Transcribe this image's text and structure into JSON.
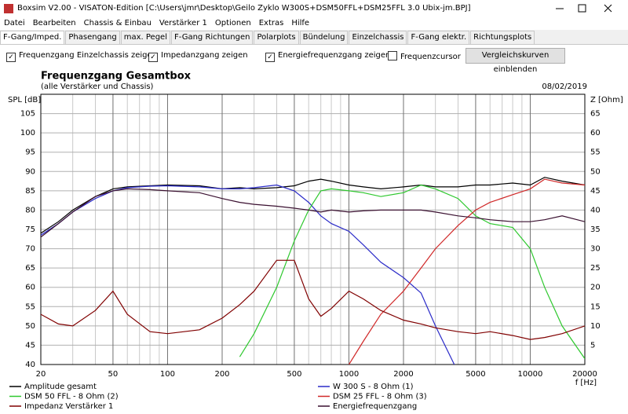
{
  "window": {
    "title": "Boxsim V2.00 - VISATON-Edition [C:\\Users\\jmr\\Desktop\\Geilo Zyklo W300S+DSM50FFL+DSM25FFL 3.0 Ubix-jm.BPJ]"
  },
  "menu": [
    "Datei",
    "Bearbeiten",
    "Chassis & Einbau",
    "Verstärker 1",
    "Optionen",
    "Extras",
    "Hilfe"
  ],
  "tabs": [
    "F-Gang/Imped.",
    "Phasengang",
    "max. Pegel",
    "F-Gang Richtungen",
    "Polarplots",
    "Bündelung",
    "Einzelchassis",
    "F-Gang elektr.",
    "Richtungsplots"
  ],
  "options": {
    "checkboxes": [
      {
        "label": "Frequenzgang Einzelchassis zeigen",
        "checked": true
      },
      {
        "label": "Impedanzgang zeigen",
        "checked": true
      },
      {
        "label": "Energiefrequenzgang zeigen",
        "checked": true
      },
      {
        "label": "Frequenzcursor",
        "checked": false
      }
    ],
    "button": "Vergleichskurven einblenden"
  },
  "chart_data": {
    "type": "line",
    "title": "Frequenzgang Gesamtbox",
    "subtitle": "(alle Verstärker und Chassis)",
    "date": "08/02/2019",
    "ylabel": "SPL [dB]",
    "y2label": "Z [Ohm]",
    "xlabel": "f [Hz]",
    "xscale": "log",
    "grid": true,
    "xlim": [
      20,
      20000
    ],
    "xticks": [
      20,
      50,
      100,
      200,
      500,
      1000,
      2000,
      5000,
      10000,
      20000
    ],
    "xminor": [
      30,
      40,
      60,
      70,
      80,
      90,
      300,
      400,
      600,
      700,
      800,
      900,
      3000,
      4000,
      6000,
      7000,
      8000,
      9000
    ],
    "ylim": [
      40,
      110
    ],
    "yticks": [
      40,
      45,
      50,
      55,
      60,
      65,
      70,
      75,
      80,
      85,
      90,
      95,
      100,
      105
    ],
    "y2lim": [
      0,
      70
    ],
    "y2ticks": [
      5,
      10,
      15,
      20,
      25,
      30,
      35,
      40,
      45,
      50,
      55,
      60,
      65
    ],
    "x": [
      20,
      25,
      30,
      40,
      50,
      60,
      80,
      100,
      150,
      200,
      250,
      300,
      400,
      500,
      600,
      700,
      800,
      1000,
      1200,
      1500,
      2000,
      2500,
      3000,
      4000,
      5000,
      6000,
      8000,
      10000,
      12000,
      15000,
      20000
    ],
    "series": [
      {
        "name": "Amplitude gesamt",
        "color": "#000000",
        "values": [
          74,
          77,
          80,
          83.5,
          85.5,
          86,
          86.3,
          86.5,
          86.3,
          85.5,
          85.8,
          85.5,
          85.8,
          86.3,
          87.5,
          88,
          87.5,
          86.5,
          86,
          85.5,
          86,
          86.5,
          86,
          86,
          86.5,
          86.5,
          87,
          86.5,
          88.5,
          87.5,
          86.5
        ]
      },
      {
        "name": "W 300 S - 8 Ohm (1)",
        "color": "#2a2ac8",
        "values": [
          73.5,
          76.5,
          79.5,
          83,
          85,
          85.8,
          86.2,
          86.3,
          86,
          85.5,
          85.5,
          85.8,
          86.5,
          85,
          82,
          78.5,
          76.5,
          74.5,
          71,
          66.5,
          62.5,
          58.5,
          50,
          38,
          null,
          null,
          null,
          null,
          null,
          null,
          null
        ]
      },
      {
        "name": "DSM 50 FFL - 8 Ohm (2)",
        "color": "#2ec82e",
        "values": [
          null,
          null,
          null,
          null,
          null,
          null,
          null,
          null,
          null,
          null,
          42,
          48,
          60,
          72,
          80,
          85,
          85.5,
          85,
          84.5,
          83.5,
          84.5,
          86.5,
          85.5,
          83,
          78.5,
          76.5,
          75.5,
          70,
          60,
          50,
          41.5
        ]
      },
      {
        "name": "DSM 25 FFL - 8 Ohm (3)",
        "color": "#d02828",
        "values": [
          null,
          null,
          null,
          null,
          null,
          null,
          null,
          null,
          null,
          null,
          null,
          null,
          null,
          null,
          null,
          null,
          null,
          40,
          46,
          53,
          59,
          65,
          70,
          76,
          80,
          82,
          84,
          85.5,
          88,
          87,
          86.5
        ]
      },
      {
        "name": "Impedanz Verstärker 1",
        "color": "#800000",
        "axis": "y2",
        "values": [
          13,
          10.5,
          10,
          14,
          19,
          13,
          8.5,
          8,
          9,
          12,
          15.5,
          19,
          27,
          27,
          17,
          12.5,
          14.5,
          19,
          17,
          14,
          11.5,
          10.5,
          9.5,
          8.5,
          8,
          8.5,
          7.5,
          6.5,
          7,
          8,
          10
        ]
      },
      {
        "name": "Energiefrequenzgang",
        "color": "#3a1030",
        "values": [
          73,
          76.5,
          79.5,
          83.5,
          85,
          85.5,
          85.3,
          85,
          84.5,
          83,
          82,
          81.5,
          81,
          80.5,
          80,
          79.5,
          80,
          79.5,
          79.8,
          80,
          80,
          80,
          79.5,
          78.5,
          78,
          77.5,
          77,
          77,
          77.5,
          78.5,
          77
        ]
      }
    ]
  }
}
